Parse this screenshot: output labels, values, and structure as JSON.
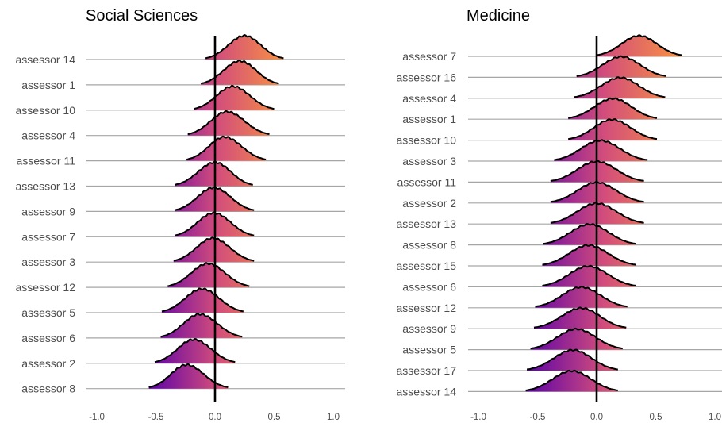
{
  "chart_data": [
    {
      "type": "ridgeline",
      "title": "Social Sciences",
      "xlim": [
        -1.0,
        1.0
      ],
      "x_ticks": [
        -1.0,
        -0.5,
        0.0,
        0.5,
        1.0
      ],
      "x_tick_labels": [
        "-1.0",
        "-0.5",
        "0.0",
        "0.5",
        "1.0"
      ],
      "reference_line_x": 0.0,
      "fill_gradient": [
        "#5a00a8",
        "#d24d7c",
        "#f99440"
      ],
      "series": [
        {
          "name": "assessor 14",
          "mode": 0.25,
          "range": [
            -0.08,
            0.58
          ]
        },
        {
          "name": "assessor 1",
          "mode": 0.21,
          "range": [
            -0.12,
            0.54
          ]
        },
        {
          "name": "assessor 10",
          "mode": 0.15,
          "range": [
            -0.18,
            0.5
          ]
        },
        {
          "name": "assessor 4",
          "mode": 0.1,
          "range": [
            -0.23,
            0.46
          ]
        },
        {
          "name": "assessor 11",
          "mode": 0.08,
          "range": [
            -0.24,
            0.43
          ]
        },
        {
          "name": "assessor 13",
          "mode": 0.0,
          "range": [
            -0.34,
            0.32
          ]
        },
        {
          "name": "assessor 9",
          "mode": -0.01,
          "range": [
            -0.34,
            0.33
          ]
        },
        {
          "name": "assessor 7",
          "mode": -0.01,
          "range": [
            -0.34,
            0.33
          ]
        },
        {
          "name": "assessor 3",
          "mode": -0.02,
          "range": [
            -0.35,
            0.33
          ]
        },
        {
          "name": "assessor 12",
          "mode": -0.06,
          "range": [
            -0.4,
            0.29
          ]
        },
        {
          "name": "assessor 5",
          "mode": -0.11,
          "range": [
            -0.45,
            0.24
          ]
        },
        {
          "name": "assessor 6",
          "mode": -0.13,
          "range": [
            -0.46,
            0.23
          ]
        },
        {
          "name": "assessor 2",
          "mode": -0.18,
          "range": [
            -0.51,
            0.17
          ]
        },
        {
          "name": "assessor 8",
          "mode": -0.24,
          "range": [
            -0.56,
            0.11
          ]
        }
      ]
    },
    {
      "type": "ridgeline",
      "title": "Medicine",
      "xlim": [
        -1.0,
        1.0
      ],
      "x_ticks": [
        -1.0,
        -0.5,
        0.0,
        0.5,
        1.0
      ],
      "x_tick_labels": [
        "-1.0",
        "-0.5",
        "0.0",
        "0.5",
        "1.0"
      ],
      "reference_line_x": 0.0,
      "fill_gradient": [
        "#5a00a8",
        "#d24d7c",
        "#f99440"
      ],
      "series": [
        {
          "name": "assessor 7",
          "mode": 0.36,
          "range": [
            0.0,
            0.72
          ]
        },
        {
          "name": "assessor 16",
          "mode": 0.21,
          "range": [
            -0.17,
            0.59
          ]
        },
        {
          "name": "assessor 4",
          "mode": 0.2,
          "range": [
            -0.19,
            0.58
          ]
        },
        {
          "name": "assessor 1",
          "mode": 0.14,
          "range": [
            -0.24,
            0.51
          ]
        },
        {
          "name": "assessor 10",
          "mode": 0.13,
          "range": [
            -0.24,
            0.51
          ]
        },
        {
          "name": "assessor 3",
          "mode": 0.03,
          "range": [
            -0.36,
            0.43
          ]
        },
        {
          "name": "assessor 11",
          "mode": 0.0,
          "range": [
            -0.39,
            0.4
          ]
        },
        {
          "name": "assessor 2",
          "mode": 0.0,
          "range": [
            -0.39,
            0.4
          ]
        },
        {
          "name": "assessor 13",
          "mode": 0.0,
          "range": [
            -0.39,
            0.4
          ]
        },
        {
          "name": "assessor 8",
          "mode": -0.06,
          "range": [
            -0.45,
            0.33
          ]
        },
        {
          "name": "assessor 15",
          "mode": -0.07,
          "range": [
            -0.46,
            0.33
          ]
        },
        {
          "name": "assessor 6",
          "mode": -0.07,
          "range": [
            -0.46,
            0.33
          ]
        },
        {
          "name": "assessor 12",
          "mode": -0.13,
          "range": [
            -0.52,
            0.26
          ]
        },
        {
          "name": "assessor 9",
          "mode": -0.13,
          "range": [
            -0.53,
            0.25
          ]
        },
        {
          "name": "assessor 5",
          "mode": -0.17,
          "range": [
            -0.56,
            0.22
          ]
        },
        {
          "name": "assessor 17",
          "mode": -0.2,
          "range": [
            -0.59,
            0.18
          ]
        },
        {
          "name": "assessor 14",
          "mode": -0.21,
          "range": [
            -0.6,
            0.18
          ]
        }
      ]
    }
  ]
}
